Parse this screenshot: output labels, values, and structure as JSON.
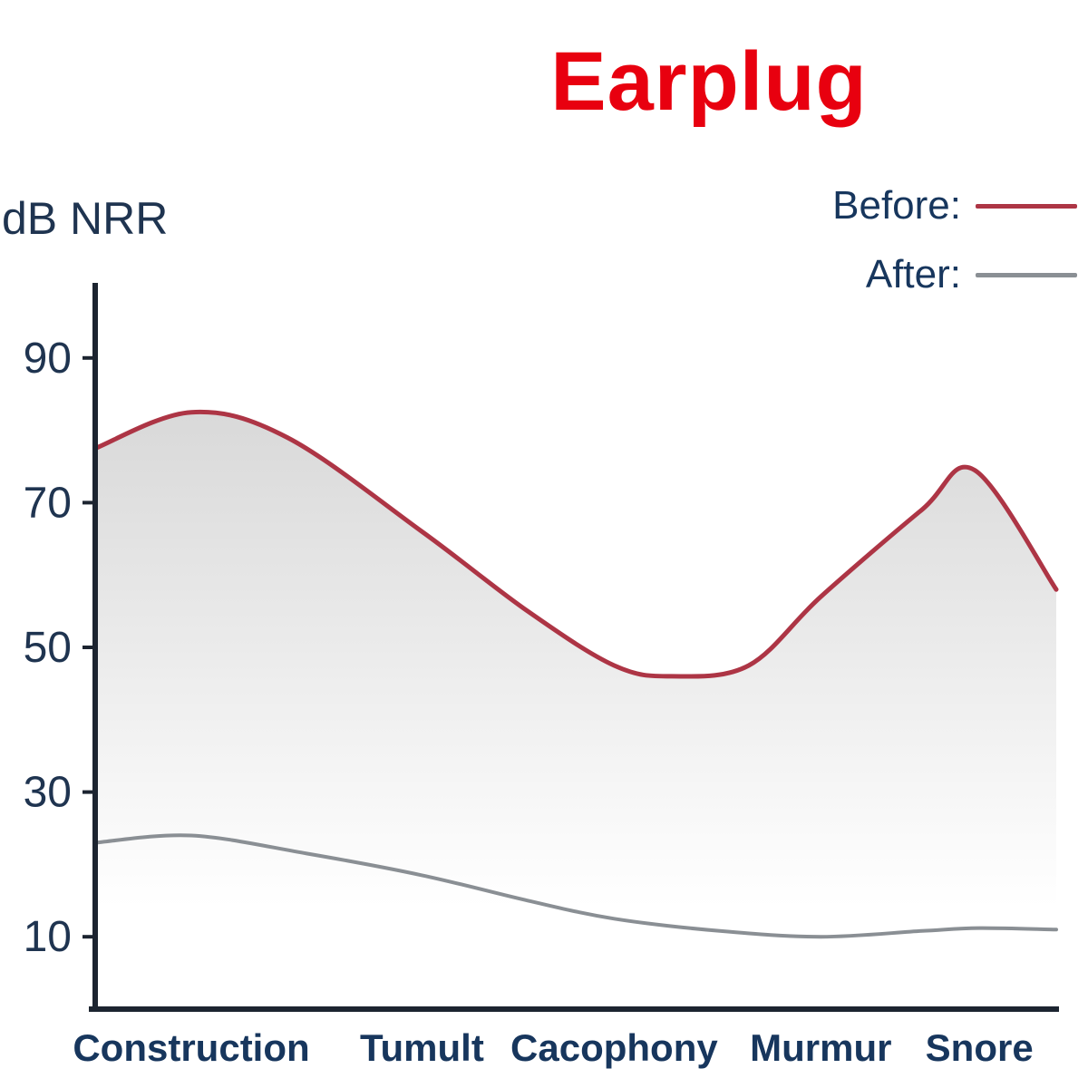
{
  "title_color": "#e8000f",
  "label_color": "#1f3450",
  "legend_color": "#17365d",
  "axis_color": "#1c2430",
  "fill_top_color": "#d5d5d5",
  "fill_bottom_color": "#ffffff",
  "chart_data": {
    "type": "line",
    "title": "Earplug",
    "ylabel": "dB NRR",
    "xlabel": "",
    "categories": [
      "Construction",
      "Tumult",
      "Cacophony",
      "Murmur",
      "Snore"
    ],
    "category_x": [
      0.1,
      0.34,
      0.54,
      0.755,
      0.92
    ],
    "yticks": [
      90,
      70,
      50,
      30,
      10
    ],
    "ylim": [
      0,
      100
    ],
    "grid": false,
    "legend_position": "top-right",
    "series": [
      {
        "name": "Before:",
        "color": "#ad3545",
        "fill": true,
        "points": [
          [
            0.0,
            77.5
          ],
          [
            0.1,
            82.5
          ],
          [
            0.2,
            79
          ],
          [
            0.34,
            66
          ],
          [
            0.45,
            55
          ],
          [
            0.54,
            47.5
          ],
          [
            0.6,
            46
          ],
          [
            0.68,
            47.5
          ],
          [
            0.755,
            57
          ],
          [
            0.86,
            69
          ],
          [
            0.915,
            74.5
          ],
          [
            1.0,
            58
          ]
        ]
      },
      {
        "name": "After:",
        "color": "#8a8f94",
        "fill": false,
        "points": [
          [
            0.0,
            23
          ],
          [
            0.1,
            24
          ],
          [
            0.22,
            21.5
          ],
          [
            0.34,
            18.5
          ],
          [
            0.45,
            15
          ],
          [
            0.54,
            12.5
          ],
          [
            0.65,
            10.8
          ],
          [
            0.755,
            10
          ],
          [
            0.86,
            10.8
          ],
          [
            0.92,
            11.2
          ],
          [
            1.0,
            11
          ]
        ]
      }
    ]
  }
}
